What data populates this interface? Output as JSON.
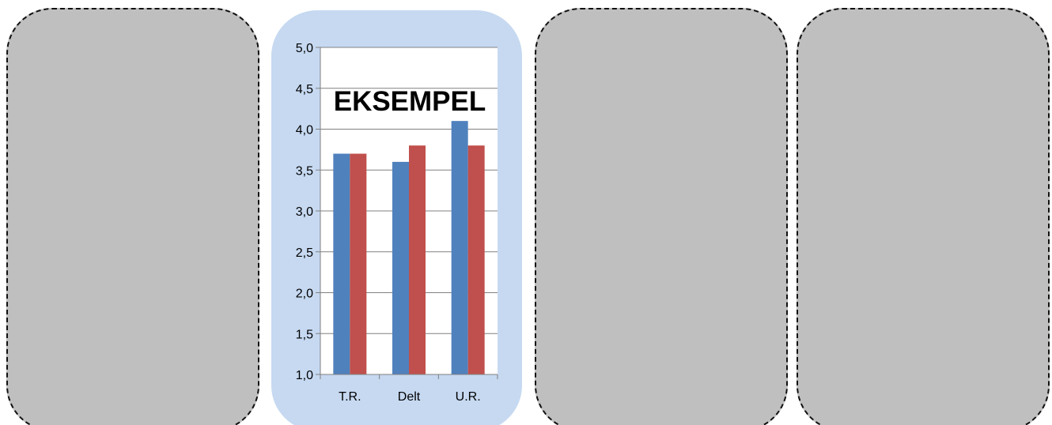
{
  "panels": [
    {
      "kind": "placeholder",
      "fill": "#bfbfbf",
      "border": "dashed",
      "border_color": "#111111"
    },
    {
      "kind": "chart",
      "fill": "#c6d9f1"
    },
    {
      "kind": "placeholder",
      "fill": "#bfbfbf",
      "border": "dashed",
      "border_color": "#111111"
    },
    {
      "kind": "placeholder",
      "fill": "#bfbfbf",
      "border": "dashed",
      "border_color": "#111111"
    }
  ],
  "overlay_text": "EKSEMPEL",
  "chart_data": {
    "type": "bar",
    "title": "",
    "xlabel": "",
    "ylabel": "",
    "categories": [
      "T.R.",
      "Delt",
      "U.R."
    ],
    "series": [
      {
        "color": "#4f81bd",
        "values": [
          3.7,
          3.6,
          4.1
        ]
      },
      {
        "color": "#c0504d",
        "values": [
          3.7,
          3.8,
          3.8
        ]
      }
    ],
    "ylim": [
      1.0,
      5.0
    ],
    "yticks": [
      "1,0",
      "1,5",
      "2,0",
      "2,5",
      "3,0",
      "3,5",
      "4,0",
      "4,5",
      "5,0"
    ],
    "ytick_values": [
      1.0,
      1.5,
      2.0,
      2.5,
      3.0,
      3.5,
      4.0,
      4.5,
      5.0
    ],
    "grid": true,
    "legend": "none",
    "plot_background": "#ffffff",
    "gridline_color": "#808080"
  }
}
